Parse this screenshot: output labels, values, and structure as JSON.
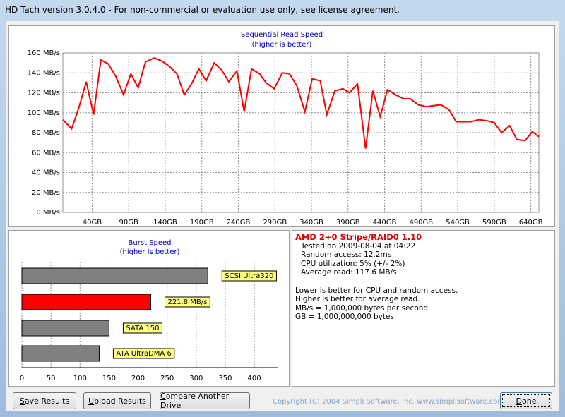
{
  "window": {
    "title": "HD Tach version 3.0.4.0  - For non-commercial or evaluation use only, see license agreement."
  },
  "read_chart": {
    "type": "line",
    "title": "Sequential Read Speed",
    "subtitle": "(higher is better)",
    "x": [
      0,
      12,
      21,
      32,
      42,
      52,
      62,
      72,
      83,
      93,
      103,
      113,
      125,
      135,
      145,
      156,
      166,
      176,
      186,
      196,
      207,
      217,
      227,
      238,
      248,
      258,
      269,
      278,
      289,
      300,
      310,
      320,
      331,
      341,
      352,
      361,
      372,
      383,
      392,
      403,
      414,
      424,
      434,
      444,
      455,
      466,
      475,
      486,
      497,
      506,
      517,
      528,
      538,
      549,
      558,
      569,
      580,
      590,
      600,
      611,
      621,
      632,
      642,
      651
    ],
    "values": [
      93,
      84,
      103,
      131,
      98,
      153,
      149,
      137,
      118,
      139,
      125,
      151,
      155,
      152,
      147,
      139,
      118,
      129,
      144,
      132,
      150,
      143,
      131,
      142,
      101,
      144,
      139,
      130,
      124,
      140,
      139,
      127,
      101,
      134,
      132,
      98,
      122,
      124,
      120,
      129,
      64,
      122,
      96,
      123,
      118,
      114,
      114,
      108,
      106,
      107,
      108,
      103,
      91,
      91,
      91,
      93,
      92,
      90,
      80,
      87,
      73,
      72,
      81,
      76
    ],
    "color": "#ff0000",
    "xlim": [
      0,
      651
    ],
    "xticks": [
      {
        "value": 40,
        "label": "40GB"
      },
      {
        "value": 90,
        "label": "90GB"
      },
      {
        "value": 140,
        "label": "140GB"
      },
      {
        "value": 190,
        "label": "190GB"
      },
      {
        "value": 240,
        "label": "240GB"
      },
      {
        "value": 290,
        "label": "290GB"
      },
      {
        "value": 340,
        "label": "340GB"
      },
      {
        "value": 390,
        "label": "390GB"
      },
      {
        "value": 440,
        "label": "440GB"
      },
      {
        "value": 490,
        "label": "490GB"
      },
      {
        "value": 540,
        "label": "540GB"
      },
      {
        "value": 590,
        "label": "590GB"
      },
      {
        "value": 640,
        "label": "640GB"
      }
    ],
    "ylim": [
      0,
      160
    ],
    "yticks": [
      {
        "value": 0,
        "label": "0 MB/s"
      },
      {
        "value": 20,
        "label": "20 MB/s"
      },
      {
        "value": 40,
        "label": "40 MB/s"
      },
      {
        "value": 60,
        "label": "60 MB/s"
      },
      {
        "value": 80,
        "label": "80 MB/s"
      },
      {
        "value": 100,
        "label": "100 MB/s"
      },
      {
        "value": 120,
        "label": "120 MB/s"
      },
      {
        "value": 140,
        "label": "140 MB/s"
      },
      {
        "value": 160,
        "label": "160 MB/s"
      }
    ],
    "grid": true
  },
  "burst_chart": {
    "type": "bar",
    "orientation": "horizontal",
    "title": "Burst Speed",
    "subtitle": "(higher is better)",
    "categories": [
      "SCSI Ultra320",
      null,
      "SATA 150",
      "ATA UltraDMA 6"
    ],
    "values": [
      320,
      221.8,
      150,
      133
    ],
    "value_labels": [
      null,
      "221.8 MB/s",
      null,
      null
    ],
    "colors": [
      "#808080",
      "#ff0000",
      "#808080",
      "#808080"
    ],
    "xlim": [
      0,
      440
    ],
    "xticks": [
      0,
      50,
      100,
      150,
      200,
      250,
      300,
      350,
      400
    ],
    "grid": true
  },
  "info": {
    "title": "AMD 2+0 Stripe/RAID0 1.10",
    "lines": [
      "Tested on 2009-08-04 at 04:22",
      "Random access: 12.2ms",
      "CPU utilization: 5% (+/- 2%)",
      "Average read: 117.6 MB/s"
    ],
    "notes": [
      "Lower is better for CPU and random access.",
      "Higher is better for average read.",
      "MB/s = 1,000,000 bytes per second.",
      "GB = 1,000,000,000 bytes."
    ]
  },
  "buttons": [
    "Save Results",
    "Upload Results",
    "Compare Another Drive",
    "Done"
  ],
  "copyright": "Copyright (C) 2004 Simpli Software, Inc. www.simplisoftware.com"
}
